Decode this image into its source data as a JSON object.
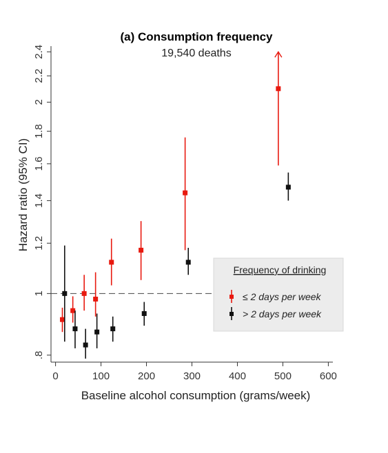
{
  "chart_data": {
    "type": "scatter",
    "title": "(a) Consumption frequency",
    "subtitle": "19,540 deaths",
    "xlabel": "Baseline alcohol consumption (grams/week)",
    "ylabel": "Hazard ratio (95% CI)",
    "xlim": [
      -10,
      610
    ],
    "ylim": [
      0.78,
      2.45
    ],
    "y_scale": "log",
    "x_ticks": [
      0,
      100,
      200,
      300,
      400,
      500,
      600
    ],
    "x_tick_labels": [
      "0",
      "100",
      "200",
      "300",
      "400",
      "500",
      "600"
    ],
    "y_ticks": [
      0.8,
      1,
      1.2,
      1.4,
      1.6,
      1.8,
      2,
      2.2,
      2.4
    ],
    "y_tick_labels": [
      ".8",
      "1",
      "1.2",
      "1.4",
      "1.6",
      "1.8",
      "2",
      "2.2",
      "2.4"
    ],
    "reference_line": 1,
    "legend": {
      "title": "Frequency of drinking",
      "placement": "right"
    },
    "series": [
      {
        "name": "≤ 2 days per week",
        "color": "#e8190f",
        "points": [
          {
            "x": 15,
            "y": 0.91,
            "lo": 0.87,
            "hi": 0.95
          },
          {
            "x": 38,
            "y": 0.94,
            "lo": 0.9,
            "hi": 0.99
          },
          {
            "x": 63,
            "y": 1.0,
            "lo": 0.94,
            "hi": 1.07
          },
          {
            "x": 88,
            "y": 0.98,
            "lo": 0.92,
            "hi": 1.08
          },
          {
            "x": 123,
            "y": 1.12,
            "lo": 1.03,
            "hi": 1.22
          },
          {
            "x": 188,
            "y": 1.17,
            "lo": 1.05,
            "hi": 1.3
          },
          {
            "x": 285,
            "y": 1.44,
            "lo": 1.17,
            "hi": 1.76
          },
          {
            "x": 490,
            "y": 2.1,
            "lo": 1.59,
            "hi": 2.4,
            "open_upper": true
          }
        ]
      },
      {
        "name": "> 2 days per week",
        "color": "#111111",
        "points": [
          {
            "x": 20,
            "y": 1.0,
            "lo": 0.84,
            "hi": 1.19
          },
          {
            "x": 43,
            "y": 0.88,
            "lo": 0.82,
            "hi": 0.94
          },
          {
            "x": 66,
            "y": 0.83,
            "lo": 0.79,
            "hi": 0.88
          },
          {
            "x": 91,
            "y": 0.87,
            "lo": 0.82,
            "hi": 0.93
          },
          {
            "x": 126,
            "y": 0.88,
            "lo": 0.84,
            "hi": 0.92
          },
          {
            "x": 195,
            "y": 0.93,
            "lo": 0.89,
            "hi": 0.97
          },
          {
            "x": 292,
            "y": 1.12,
            "lo": 1.07,
            "hi": 1.18
          },
          {
            "x": 512,
            "y": 1.47,
            "lo": 1.4,
            "hi": 1.55
          }
        ]
      }
    ]
  }
}
